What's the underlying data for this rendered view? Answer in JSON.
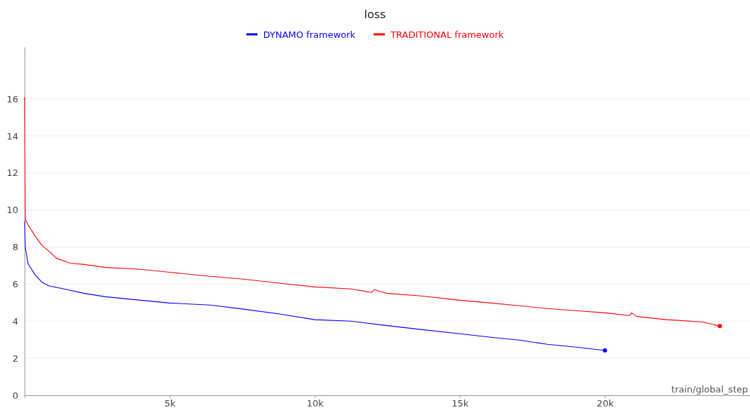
{
  "chart_data": {
    "type": "line",
    "title": "loss",
    "xlabel": "train/global_step",
    "xlim": [
      0,
      25000
    ],
    "ylim": [
      0,
      18.8
    ],
    "xticks": [
      {
        "value": 5000,
        "label": "5k"
      },
      {
        "value": 10000,
        "label": "10k"
      },
      {
        "value": 15000,
        "label": "15k"
      },
      {
        "value": 20000,
        "label": "20k"
      }
    ],
    "yticks": [
      0,
      2,
      4,
      6,
      8,
      10,
      12,
      14,
      16
    ],
    "grid": "y",
    "legend": "top",
    "line_style": "solid",
    "series": [
      {
        "name": "DYNAMO framework",
        "color": "#0000ff",
        "x": [
          0,
          24,
          120,
          360,
          600,
          850,
          1330,
          2060,
          2780,
          4000,
          5000,
          6400,
          7600,
          8830,
          10000,
          11250,
          12450,
          13660,
          15000,
          16080,
          17050,
          18020,
          19000,
          20000
        ],
        "values": [
          9.4,
          8.0,
          7.1,
          6.5,
          6.1,
          5.9,
          5.75,
          5.5,
          5.32,
          5.13,
          4.98,
          4.87,
          4.64,
          4.38,
          4.08,
          4.0,
          3.77,
          3.55,
          3.32,
          3.13,
          2.98,
          2.75,
          2.6,
          2.42
        ]
      },
      {
        "name": "TRADITIONAL framework",
        "color": "#ff0000",
        "x": [
          0,
          24,
          120,
          360,
          600,
          850,
          1090,
          1570,
          2060,
          2780,
          4000,
          5000,
          6400,
          7600,
          8830,
          10000,
          11250,
          11950,
          12050,
          12450,
          13660,
          15000,
          16080,
          17050,
          18020,
          19000,
          20000,
          20850,
          20920,
          21100,
          22130,
          23340,
          23960
        ],
        "values": [
          16.1,
          9.5,
          9.2,
          8.6,
          8.08,
          7.77,
          7.4,
          7.13,
          7.06,
          6.9,
          6.8,
          6.64,
          6.42,
          6.26,
          6.04,
          5.85,
          5.74,
          5.55,
          5.7,
          5.51,
          5.36,
          5.13,
          4.98,
          4.83,
          4.68,
          4.57,
          4.45,
          4.3,
          4.45,
          4.25,
          4.08,
          3.96,
          3.74
        ]
      },
      {
        "type": "scatter",
        "color": "#0000ff",
        "x": [
          20000
        ],
        "values": [
          2.42
        ]
      },
      {
        "type": "scatter",
        "color": "#ff0000",
        "x": [
          23960
        ],
        "values": [
          3.74
        ]
      }
    ]
  }
}
